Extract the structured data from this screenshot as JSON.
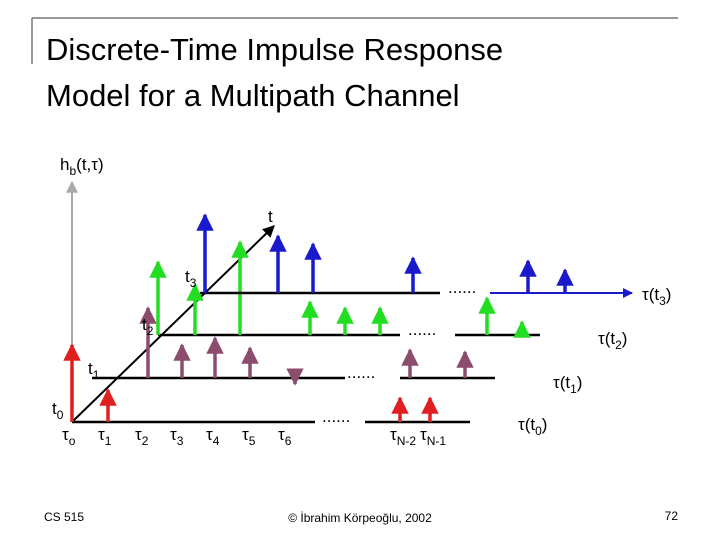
{
  "title": {
    "lines": [
      "Discrete-Time Impulse Response",
      "Model for a Multipath Channel"
    ]
  },
  "axes": {
    "vertical": {
      "base": "h",
      "sub": "b",
      "rest": "(t,τ)"
    },
    "time": "t"
  },
  "time_labels": [
    {
      "base": "t",
      "sub": "0"
    },
    {
      "base": "t",
      "sub": "1"
    },
    {
      "base": "t",
      "sub": "2"
    },
    {
      "base": "t",
      "sub": "3"
    }
  ],
  "delay_labels": [
    {
      "base": "τ",
      "sub": "o"
    },
    {
      "base": "τ",
      "sub": "1"
    },
    {
      "base": "τ",
      "sub": "2"
    },
    {
      "base": "τ",
      "sub": "3"
    },
    {
      "base": "τ",
      "sub": "4"
    },
    {
      "base": "τ",
      "sub": "5"
    },
    {
      "base": "τ",
      "sub": "6"
    },
    {
      "base": "τ",
      "sub": "N-2"
    },
    {
      "base": "τ",
      "sub": "N-1"
    }
  ],
  "delay_axis_labels": [
    {
      "pre": "τ(t",
      "sub": "0",
      "post": ")"
    },
    {
      "pre": "τ(t",
      "sub": "1",
      "post": ")"
    },
    {
      "pre": "τ(t",
      "sub": "2",
      "post": ")"
    },
    {
      "pre": "τ(t",
      "sub": "3",
      "post": ")"
    }
  ],
  "ellipses": [
    "......",
    "......",
    "......",
    "......"
  ],
  "footer": {
    "left": "CS 515",
    "center": "© İbrahim Körpeoğlu, 2002",
    "right": "72"
  }
}
